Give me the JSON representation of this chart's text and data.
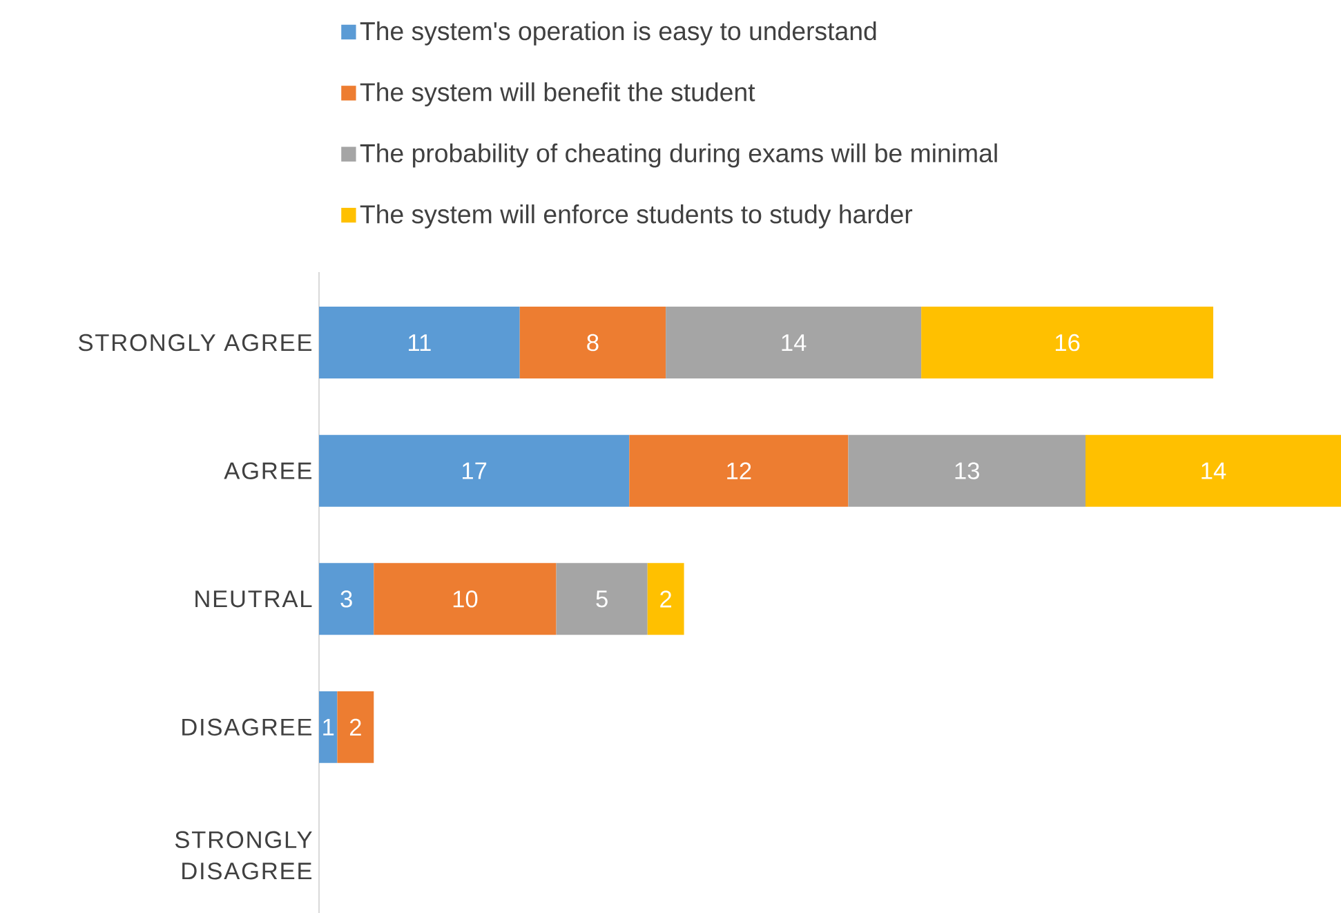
{
  "chart_data": {
    "type": "bar",
    "orientation": "horizontal",
    "stacked": true,
    "data_labels": true,
    "legend": "top",
    "tick_labels": "y",
    "xlim": [
      0,
      56
    ],
    "categories": [
      "STRONGLY AGREE",
      "AGREE",
      "NEUTRAL",
      "DISAGREE",
      "STRONGLY DISAGREE"
    ],
    "series": [
      {
        "name": "The system's operation is easy to understand",
        "color": "#5b9bd5",
        "values": [
          11,
          17,
          3,
          1,
          null
        ]
      },
      {
        "name": "The system will benefit the student",
        "color": "#ed7d31",
        "values": [
          8,
          12,
          10,
          2,
          null
        ]
      },
      {
        "name": "The probability of cheating during exams will be minimal",
        "color": "#a5a5a5",
        "values": [
          14,
          13,
          5,
          null,
          null
        ]
      },
      {
        "name": "The system will enforce students to study harder",
        "color": "#ffc000",
        "values": [
          16,
          14,
          2,
          null,
          null
        ]
      }
    ]
  }
}
